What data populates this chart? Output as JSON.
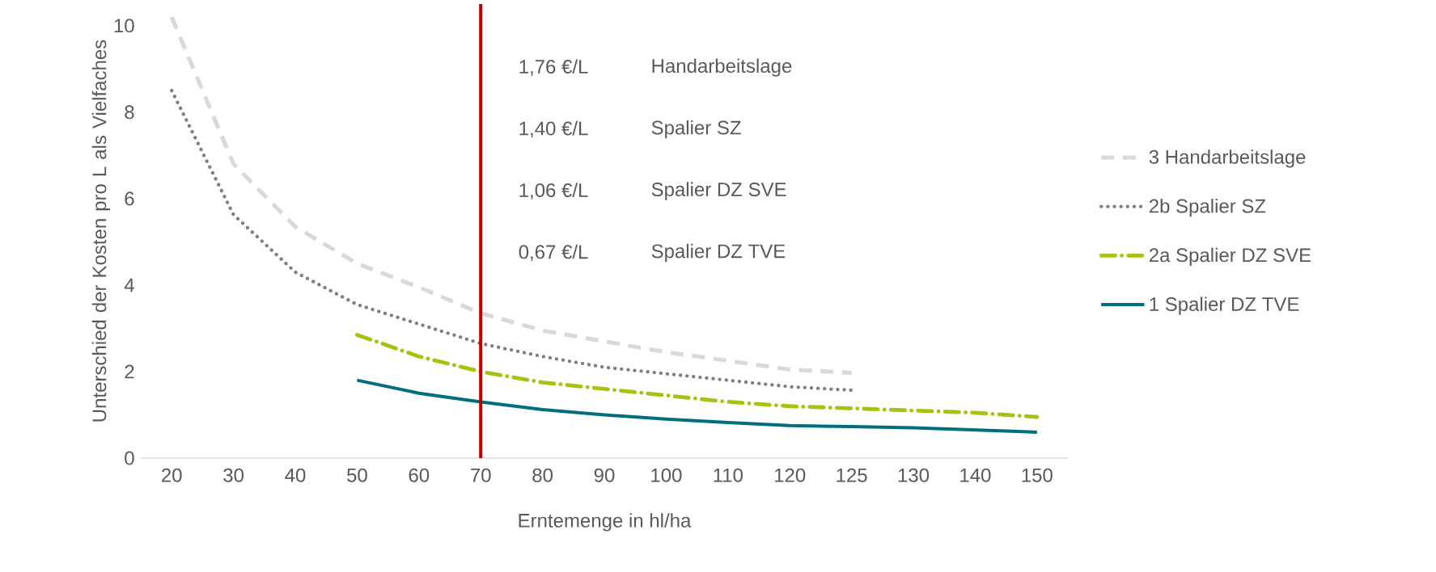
{
  "chart_data": {
    "type": "line",
    "xlabel": "Erntemenge in hl/ha",
    "ylabel": "Unterschied der Kosten pro L als Vielfaches",
    "categories": [
      "20",
      "30",
      "40",
      "50",
      "60",
      "70",
      "80",
      "90",
      "100",
      "110",
      "120",
      "125",
      "130",
      "140",
      "150"
    ],
    "series": [
      {
        "name": "3 Handarbeitslage",
        "color": "#d9d9d9",
        "line_style": "dashed",
        "values": [
          10.2,
          6.8,
          5.35,
          4.5,
          3.95,
          3.35,
          2.95,
          2.7,
          2.45,
          2.25,
          2.05,
          1.97,
          null,
          null,
          null
        ]
      },
      {
        "name": "2b Spalier SZ",
        "color": "#7f7f7f",
        "line_style": "dotted",
        "values": [
          8.5,
          5.63,
          4.3,
          3.55,
          3.1,
          2.65,
          2.35,
          2.1,
          1.95,
          1.8,
          1.65,
          1.57,
          null,
          null,
          null
        ]
      },
      {
        "name": "2a Spalier DZ SVE",
        "color": "#a9c210",
        "line_style": "dashdot",
        "values": [
          null,
          null,
          null,
          2.85,
          2.35,
          2.0,
          1.75,
          1.6,
          1.45,
          1.3,
          1.2,
          1.15,
          1.1,
          1.05,
          0.95
        ]
      },
      {
        "name": "1 Spalier DZ TVE",
        "color": "#006e7c",
        "line_style": "solid",
        "values": [
          null,
          null,
          null,
          1.8,
          1.5,
          1.3,
          1.12,
          1.0,
          0.9,
          0.82,
          0.75,
          0.73,
          0.7,
          0.65,
          0.6
        ]
      }
    ],
    "ylim": [
      0,
      10.5
    ],
    "yticks": [
      0,
      2,
      4,
      6,
      8,
      10
    ],
    "grid": false,
    "legend": "right",
    "marker": "none",
    "ref_lines": [
      {
        "axis": "x",
        "value": "70",
        "color": "#c00000"
      }
    ],
    "annotations": [
      "1,76 €/L",
      "Handarbeitslage",
      "1,40 €/L",
      "Spalier SZ",
      "1,06 €/L",
      "Spalier DZ SVE",
      "0,67 €/L",
      "Spalier DZ TVE"
    ]
  }
}
